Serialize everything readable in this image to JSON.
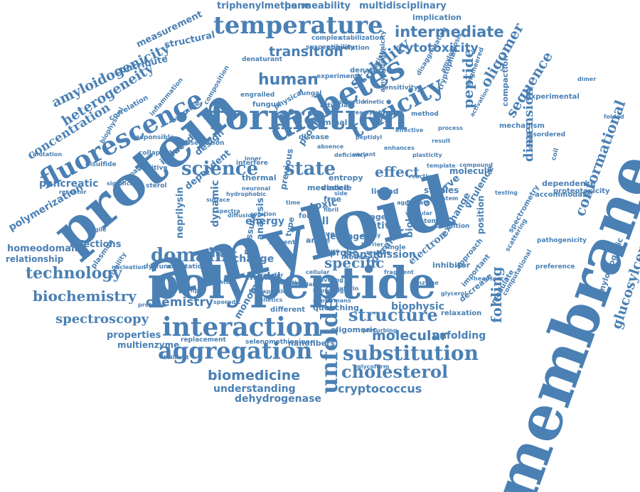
{
  "palette": {
    "word_color": "#4a80b4",
    "background": "#ffffff"
  },
  "words": [
    "triphenylmethane",
    "permeability",
    "multidisciplinary",
    "implication",
    "temperature",
    "intermediate",
    "measurement",
    "structural",
    "amyloidogenicity",
    "transition",
    "cytotoxicity",
    "stability",
    "contribute",
    "amyloidogenicity",
    "human",
    "diabetes",
    "peptide",
    "oligomer",
    "heterogeneity",
    "engineered",
    "sequence",
    "toxicity",
    "fluorescence",
    "protein",
    "membrane",
    "formation",
    "concentration",
    "dimension",
    "experimental",
    "conformational",
    "glucosylceramide",
    "science",
    "state",
    "effect",
    "pancreatic",
    "amyloid",
    "polymerization",
    "dependence",
    "proteotoxicity",
    "amyloidogenic",
    "homeodomain",
    "relationship",
    "domain",
    "polypeptide",
    "technology",
    "biochemistry",
    "chemistry",
    "structure",
    "spectroscopy",
    "interaction",
    "biophysic",
    "molecular",
    "folding",
    "unfolding",
    "properties",
    "multienzyme",
    "aggregation",
    "substitution",
    "unfolded",
    "cholesterol",
    "biomedicine",
    "cryptococcus",
    "understanding",
    "dehydrogenase",
    "specific",
    "neprilysin",
    "dependent",
    "dynamic",
    "analysis",
    "energy",
    "cell",
    "native",
    "ligand",
    "molecule",
    "studies",
    "biology",
    "observe",
    "exchange",
    "electron",
    "inhibitor",
    "position",
    "virulence",
    "mechanism",
    "compaction",
    "disordered",
    "accommodate",
    "preference",
    "pathogenicity",
    "spectrometry",
    "scattering",
    "decrease",
    "relaxation",
    "modulate",
    "transmission",
    "model",
    "change",
    "monomer",
    "pressure",
    "mutant",
    "different",
    "quenching",
    "oligomeric",
    "nanofibers",
    "replacement",
    "selenomethionine",
    "neoformans",
    "terminal",
    "disease",
    "fungus",
    "experiment",
    "denatured",
    "engrailed",
    "statistic",
    "sensitivity",
    "method",
    "leakage",
    "probe",
    "toxic",
    "reveal",
    "angle",
    "design",
    "thermal",
    "proline",
    "entropy",
    "fungal",
    "artificial",
    "examine",
    "physical",
    "collapse",
    "induced",
    "plasmon",
    "infections",
    "dysfunction",
    "adaptation",
    "viability",
    "information",
    "significant",
    "responsible",
    "correlation",
    "biophysical",
    "inflammation",
    "composition",
    "disulfide",
    "observation",
    "complex",
    "stabilization",
    "convolution",
    "susceptibility",
    "denaturant",
    "disaggregating",
    "tryptophan",
    "amyloidosis",
    "approach",
    "important",
    "condition",
    "atomic",
    "mouse",
    "ultrafast",
    "single",
    "residue",
    "barrier",
    "feature",
    "ability",
    "sterol",
    "result",
    "positive",
    "interfere",
    "mediated",
    "vesicle",
    "free",
    "rage",
    "coil",
    "chain",
    "computational",
    "headspace",
    "activation",
    "perturbing",
    "glycoform",
    "knowledge",
    "therapeutic",
    "brilliant",
    "transfer",
    "preamyloid",
    "kinetic",
    "secretion",
    "effective",
    "previous",
    "solvent",
    "type",
    "form",
    "fibril",
    "time",
    "side",
    "inner",
    "deficiency",
    "variant",
    "system",
    "testing",
    "enzyme",
    "process",
    "plasticity",
    "template",
    "compound",
    "glycerol",
    "fragment",
    "reduction",
    "fibrillar",
    "cellular",
    "fratarin",
    "providing",
    "kinetics",
    "sporadic",
    "context",
    "lipid",
    "neuronal",
    "spectra",
    "diffusion",
    "surface",
    "hydrophobic",
    "peptidyl",
    "enhances",
    "absence",
    "reactive",
    "aggregate",
    "vascular",
    "solution",
    "dimer",
    "folded",
    "mutation",
    "receptor",
    "fragile",
    "nucleation",
    "protease"
  ]
}
